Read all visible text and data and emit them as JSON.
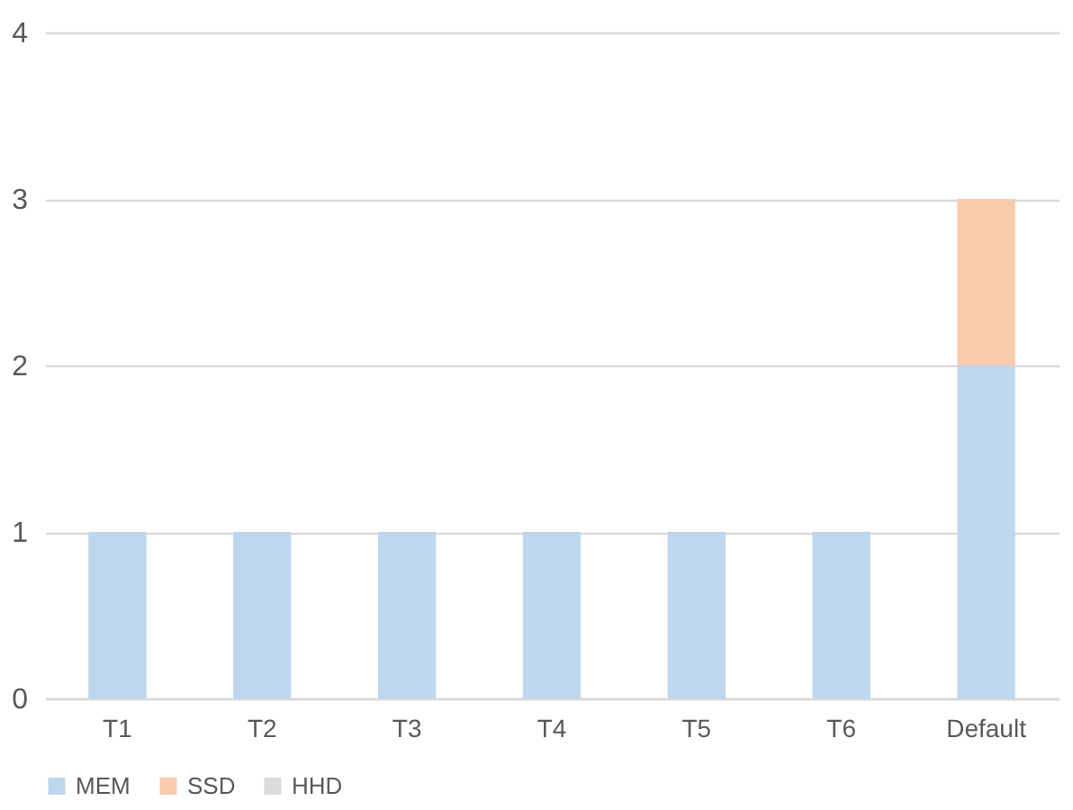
{
  "chart_data": {
    "type": "bar",
    "stacked": true,
    "categories": [
      "T1",
      "T2",
      "T3",
      "T4",
      "T5",
      "T6",
      "Default"
    ],
    "series": [
      {
        "name": "MEM",
        "color": "#bdd7ee",
        "values": [
          1,
          1,
          1,
          1,
          1,
          1,
          2
        ]
      },
      {
        "name": "SSD",
        "color": "#f8cbad",
        "values": [
          0,
          0,
          0,
          0,
          0,
          0,
          1
        ]
      },
      {
        "name": "HHD",
        "color": "#dbdbdb",
        "values": [
          0,
          0,
          0,
          0,
          0,
          0,
          0
        ]
      }
    ],
    "ylim": [
      0,
      4
    ],
    "yticks": [
      0,
      1,
      2,
      3,
      4
    ],
    "grid": "y",
    "legend": "bottom"
  }
}
